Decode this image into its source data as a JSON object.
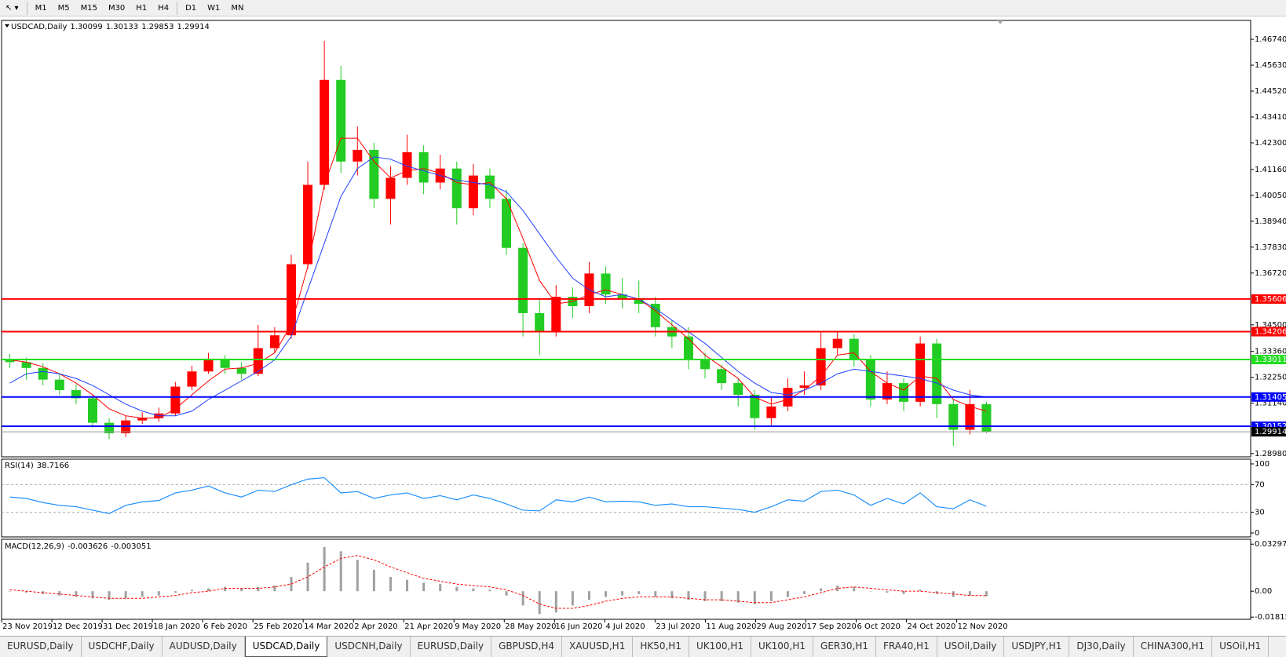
{
  "toolbar": {
    "timeframes": [
      "M1",
      "M5",
      "M15",
      "M30",
      "H1",
      "H4",
      "D1",
      "W1",
      "MN"
    ]
  },
  "chart_data": [
    {
      "type": "candlestick",
      "symbol": "USDCAD,Daily",
      "header_values": [
        1.30099,
        1.30133,
        1.29853,
        1.29914
      ],
      "x_labels": [
        "23 Nov 2019",
        "12 Dec 2019",
        "31 Dec 2019",
        "18 Jan 2020",
        "6 Feb 2020",
        "25 Feb 2020",
        "14 Mar 2020",
        "2 Apr 2020",
        "21 Apr 2020",
        "9 May 2020",
        "28 May 2020",
        "16 Jun 2020",
        "4 Jul 2020",
        "23 Jul 2020",
        "11 Aug 2020",
        "29 Aug 2020",
        "17 Sep 2020",
        "6 Oct 2020",
        "24 Oct 2020",
        "12 Nov 2020"
      ],
      "open": [
        1.33,
        1.329,
        1.3265,
        1.3215,
        1.317,
        1.3135,
        1.303,
        1.2985,
        1.304,
        1.305,
        1.307,
        1.3185,
        1.325,
        1.3305,
        1.3265,
        1.324,
        1.335,
        1.3405,
        1.371,
        1.405,
        1.45,
        1.415,
        1.42,
        1.399,
        1.408,
        1.419,
        1.406,
        1.412,
        1.395,
        1.409,
        1.399,
        1.378,
        1.35,
        1.342,
        1.357,
        1.353,
        1.367,
        1.358,
        1.356,
        1.354,
        1.344,
        1.34,
        1.33,
        1.326,
        1.32,
        1.315,
        1.305,
        1.31,
        1.318,
        1.319,
        1.335,
        1.339,
        1.33,
        1.313,
        1.32,
        1.312,
        1.337,
        1.311,
        1.3,
        1.311
      ],
      "high": [
        1.3325,
        1.331,
        1.3285,
        1.324,
        1.3195,
        1.315,
        1.305,
        1.306,
        1.3075,
        1.3095,
        1.3205,
        1.3275,
        1.333,
        1.332,
        1.329,
        1.345,
        1.344,
        1.375,
        1.415,
        1.4667,
        1.456,
        1.43,
        1.423,
        1.413,
        1.4265,
        1.422,
        1.418,
        1.415,
        1.414,
        1.412,
        1.403,
        1.38,
        1.356,
        1.362,
        1.361,
        1.372,
        1.37,
        1.365,
        1.364,
        1.357,
        1.347,
        1.344,
        1.333,
        1.328,
        1.322,
        1.317,
        1.314,
        1.322,
        1.325,
        1.342,
        1.342,
        1.341,
        1.332,
        1.325,
        1.322,
        1.34,
        1.339,
        1.313,
        1.317,
        1.312
      ],
      "low": [
        1.3265,
        1.3215,
        1.319,
        1.315,
        1.311,
        1.301,
        1.296,
        1.297,
        1.3025,
        1.3035,
        1.306,
        1.317,
        1.324,
        1.324,
        1.3215,
        1.323,
        1.333,
        1.339,
        1.369,
        1.403,
        1.41,
        1.409,
        1.395,
        1.388,
        1.405,
        1.401,
        1.403,
        1.388,
        1.392,
        1.395,
        1.375,
        1.34,
        1.332,
        1.34,
        1.348,
        1.35,
        1.354,
        1.352,
        1.35,
        1.34,
        1.335,
        1.326,
        1.322,
        1.317,
        1.31,
        1.3,
        1.302,
        1.308,
        1.315,
        1.317,
        1.332,
        1.327,
        1.31,
        1.311,
        1.308,
        1.31,
        1.305,
        1.293,
        1.298,
        1.2985
      ],
      "close": [
        1.329,
        1.3265,
        1.3215,
        1.317,
        1.3135,
        1.303,
        1.2985,
        1.304,
        1.305,
        1.307,
        1.3185,
        1.325,
        1.3305,
        1.3265,
        1.324,
        1.335,
        1.3405,
        1.371,
        1.405,
        1.45,
        1.415,
        1.42,
        1.399,
        1.408,
        1.419,
        1.406,
        1.412,
        1.395,
        1.409,
        1.399,
        1.378,
        1.35,
        1.342,
        1.357,
        1.353,
        1.367,
        1.358,
        1.356,
        1.354,
        1.344,
        1.34,
        1.33,
        1.326,
        1.32,
        1.315,
        1.305,
        1.31,
        1.318,
        1.319,
        1.335,
        1.339,
        1.33,
        1.313,
        1.32,
        1.312,
        1.337,
        1.311,
        1.3,
        1.311,
        1.29914
      ],
      "up_color": "#ff0000",
      "down_color": "#22cc22",
      "moving_averages": [
        {
          "color": "#ff0000",
          "values": [
            1.33,
            1.329,
            1.327,
            1.324,
            1.32,
            1.315,
            1.309,
            1.306,
            1.305,
            1.305,
            1.309,
            1.315,
            1.321,
            1.326,
            1.3265,
            1.3285,
            1.333,
            1.345,
            1.37,
            1.405,
            1.425,
            1.425,
            1.415,
            1.408,
            1.411,
            1.412,
            1.41,
            1.406,
            1.405,
            1.406,
            1.399,
            1.382,
            1.364,
            1.354,
            1.355,
            1.358,
            1.36,
            1.358,
            1.356,
            1.351,
            1.345,
            1.339,
            1.332,
            1.327,
            1.322,
            1.314,
            1.311,
            1.313,
            1.317,
            1.323,
            1.332,
            1.333,
            1.325,
            1.32,
            1.317,
            1.323,
            1.322,
            1.313,
            1.31,
            1.308
          ]
        },
        {
          "color": "#1f3fff",
          "values": [
            1.32,
            1.324,
            1.325,
            1.324,
            1.322,
            1.319,
            1.315,
            1.311,
            1.308,
            1.306,
            1.306,
            1.308,
            1.313,
            1.317,
            1.321,
            1.325,
            1.33,
            1.34,
            1.36,
            1.38,
            1.4,
            1.412,
            1.417,
            1.416,
            1.413,
            1.411,
            1.409,
            1.407,
            1.406,
            1.405,
            1.402,
            1.394,
            1.384,
            1.374,
            1.365,
            1.36,
            1.357,
            1.358,
            1.356,
            1.352,
            1.347,
            1.342,
            1.337,
            1.331,
            1.325,
            1.32,
            1.316,
            1.315,
            1.317,
            1.32,
            1.324,
            1.326,
            1.325,
            1.324,
            1.323,
            1.322,
            1.32,
            1.317,
            1.315,
            1.314
          ]
        }
      ],
      "levels": [
        {
          "value": 1.35606,
          "color": "#ff0000"
        },
        {
          "value": 1.34206,
          "color": "#ff0000"
        },
        {
          "value": 1.33011,
          "color": "#22dd22"
        },
        {
          "value": 1.31405,
          "color": "#0000ff"
        },
        {
          "value": 1.30152,
          "color": "#0000ff"
        }
      ],
      "ylim": [
        1.2884,
        1.4755
      ],
      "yticks": [
        {
          "value": 1.4674,
          "label": "1.46740"
        },
        {
          "value": 1.4563,
          "label": "1.45630"
        },
        {
          "value": 1.4452,
          "label": "1.44520"
        },
        {
          "value": 1.4341,
          "label": "1.43410"
        },
        {
          "value": 1.423,
          "label": "1.42300"
        },
        {
          "value": 1.4116,
          "label": "1.41160"
        },
        {
          "value": 1.4005,
          "label": "1.40050"
        },
        {
          "value": 1.3894,
          "label": "1.38940"
        },
        {
          "value": 1.3783,
          "label": "1.37830"
        },
        {
          "value": 1.3672,
          "label": "1.36720"
        },
        {
          "value": 1.345,
          "label": "1.34500"
        },
        {
          "value": 1.3336,
          "label": "1.33360"
        },
        {
          "value": 1.3225,
          "label": "1.32250"
        },
        {
          "value": 1.3114,
          "label": "1.31140"
        },
        {
          "value": 1.2898,
          "label": "1.28980"
        }
      ]
    },
    {
      "type": "line",
      "title": "RSI(14)",
      "current": 38.7166,
      "color": "#1e90ff",
      "values": [
        52,
        50,
        44,
        40,
        38,
        33,
        28,
        40,
        45,
        47,
        58,
        62,
        68,
        58,
        52,
        62,
        60,
        70,
        78,
        80,
        58,
        60,
        50,
        55,
        58,
        50,
        54,
        48,
        55,
        50,
        42,
        33,
        32,
        48,
        45,
        52,
        45,
        46,
        45,
        40,
        42,
        38,
        38,
        36,
        34,
        30,
        38,
        48,
        46,
        60,
        62,
        55,
        40,
        50,
        42,
        58,
        38,
        35,
        48,
        38.7166
      ],
      "ylim": [
        -5.7,
        106.8
      ],
      "yticks": [
        100,
        70,
        30,
        0
      ]
    },
    {
      "type": "macd",
      "title": "MACD(12,26,9)",
      "header_values": [
        -0.003626,
        -0.003051
      ],
      "hist_color": "#a0a0a0",
      "signal_color": "#ff0000",
      "histogram": [
        0,
        -0.001,
        -0.002,
        -0.003,
        -0.004,
        -0.005,
        -0.006,
        -0.005,
        -0.004,
        -0.003,
        -0.001,
        0.001,
        0.002,
        0.003,
        0.002,
        0.003,
        0.004,
        0.01,
        0.02,
        0.031,
        0.028,
        0.022,
        0.015,
        0.01,
        0.008,
        0.006,
        0.005,
        0.003,
        0.002,
        0.001,
        -0.003,
        -0.01,
        -0.016,
        -0.015,
        -0.01,
        -0.006,
        -0.004,
        -0.003,
        -0.002,
        -0.004,
        -0.005,
        -0.006,
        -0.007,
        -0.007,
        -0.008,
        -0.009,
        -0.007,
        -0.004,
        -0.002,
        0.002,
        0.004,
        0.003,
        0,
        -0.001,
        -0.002,
        0.001,
        -0.002,
        -0.004,
        -0.003,
        -0.003626
      ],
      "signal": [
        0.001,
        0,
        -0.001,
        -0.002,
        -0.003,
        -0.004,
        -0.005,
        -0.005,
        -0.005,
        -0.004,
        -0.003,
        -0.001,
        0,
        0.002,
        0.002,
        0.002,
        0.003,
        0.005,
        0.01,
        0.017,
        0.023,
        0.025,
        0.022,
        0.017,
        0.013,
        0.009,
        0.007,
        0.005,
        0.004,
        0.003,
        0.001,
        -0.003,
        -0.009,
        -0.012,
        -0.012,
        -0.01,
        -0.007,
        -0.005,
        -0.004,
        -0.004,
        -0.004,
        -0.005,
        -0.006,
        -0.006,
        -0.007,
        -0.008,
        -0.008,
        -0.006,
        -0.004,
        -0.001,
        0.002,
        0.003,
        0.002,
        0.001,
        0,
        0,
        -0.001,
        -0.002,
        -0.003,
        -0.003051
      ],
      "ylim": [
        -0.0197,
        0.0364
      ],
      "yticks": [
        0.032972,
        {
          "value": 0,
          "label": "0.00"
        },
        -0.018154
      ]
    }
  ],
  "tabs": {
    "items": [
      "EURUSD,Daily",
      "USDCHF,Daily",
      "AUDUSD,Daily",
      "USDCAD,Daily",
      "USDCNH,Daily",
      "EURUSD,Daily",
      "GBPUSD,H4",
      "XAUUSD,H1",
      "HK50,H1",
      "UK100,H1",
      "UK100,H1",
      "GER30,H1",
      "FRA40,H1",
      "USOil,Daily",
      "USDJPY,H1",
      "DJ30,Daily",
      "CHINA300,H1",
      "USOil,H1"
    ],
    "active": 3
  }
}
